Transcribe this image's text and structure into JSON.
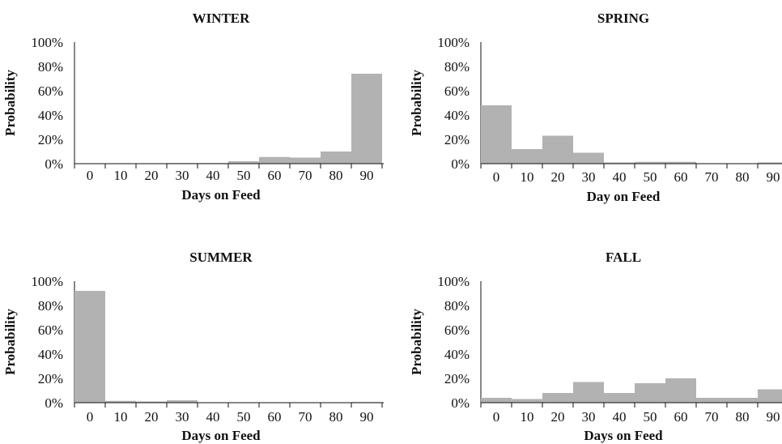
{
  "chart_data": [
    {
      "type": "bar",
      "title": "WINTER",
      "xlabel": "Days on Feed",
      "ylabel": "Probability",
      "categories": [
        "0",
        "10",
        "20",
        "30",
        "40",
        "50",
        "60",
        "70",
        "80",
        "90"
      ],
      "values": [
        0,
        0,
        0,
        0.5,
        0.5,
        2,
        5.5,
        5,
        10,
        74
      ],
      "ylim": [
        0,
        100
      ],
      "yticks": [
        "0%",
        "20%",
        "40%",
        "60%",
        "80%",
        "100%"
      ],
      "color": "#b2b2b2"
    },
    {
      "type": "bar",
      "title": "SPRING",
      "xlabel": "Day on Feed",
      "ylabel": "Probability",
      "categories": [
        "0",
        "10",
        "20",
        "30",
        "40",
        "50",
        "60",
        "70",
        "80",
        "90"
      ],
      "values": [
        48,
        12,
        23,
        9,
        1,
        1.5,
        1.5,
        0,
        0,
        1
      ],
      "ylim": [
        0,
        100
      ],
      "yticks": [
        "0%",
        "20%",
        "40%",
        "60%",
        "80%",
        "100%"
      ],
      "color": "#b2b2b2"
    },
    {
      "type": "bar",
      "title": "SUMMER",
      "xlabel": "Days on Feed",
      "ylabel": "Probability",
      "categories": [
        "0",
        "10",
        "20",
        "30",
        "40",
        "50",
        "60",
        "70",
        "80",
        "90"
      ],
      "values": [
        92,
        1.5,
        1,
        2,
        0,
        0,
        0,
        0,
        0,
        0.5
      ],
      "ylim": [
        0,
        100
      ],
      "yticks": [
        "0%",
        "20%",
        "40%",
        "60%",
        "80%",
        "100%"
      ],
      "color": "#b2b2b2"
    },
    {
      "type": "bar",
      "title": "FALL",
      "xlabel": "Days on Feed",
      "ylabel": "Probability",
      "categories": [
        "0",
        "10",
        "20",
        "30",
        "40",
        "50",
        "60",
        "70",
        "80",
        "90"
      ],
      "values": [
        4,
        3,
        8,
        17,
        8,
        16,
        20,
        4,
        4,
        11
      ],
      "ylim": [
        0,
        100
      ],
      "yticks": [
        "0%",
        "20%",
        "40%",
        "60%",
        "80%",
        "100%"
      ],
      "color": "#b2b2b2"
    }
  ]
}
